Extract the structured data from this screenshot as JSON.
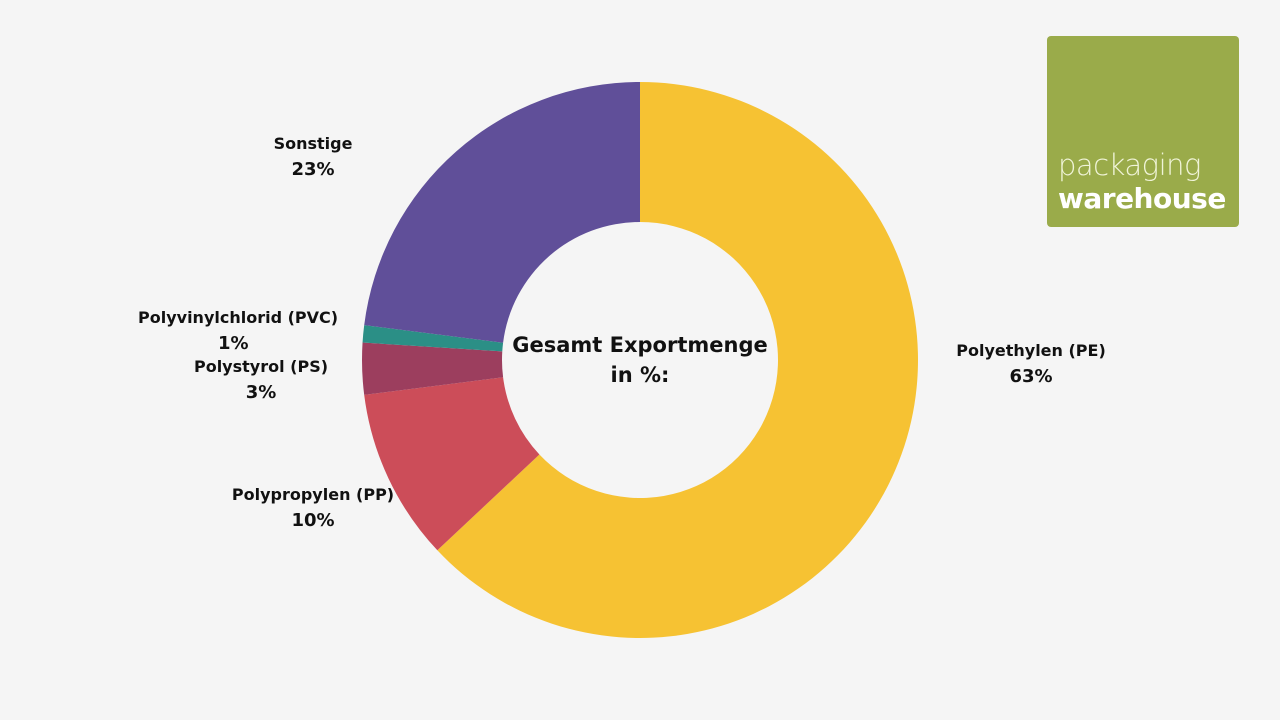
{
  "chart_data": {
    "type": "pie",
    "variant": "donut",
    "title": "Gesamt Exportmenge in %:",
    "categories": [
      "Polyethylen (PE)",
      "Polypropylen (PP)",
      "Polystyrol (PS)",
      "Polyvinylchlorid (PVC)",
      "Sonstige"
    ],
    "values": [
      63,
      10,
      3,
      1,
      23
    ],
    "colors": [
      "#f6c233",
      "#cc4d59",
      "#9c3e5e",
      "#2b8f86",
      "#604f99"
    ],
    "start_angle_deg": 0,
    "direction": "clockwise",
    "labels": [
      {
        "name": "Polyethylen (PE)",
        "value": "63%"
      },
      {
        "name": "Polypropylen (PP)",
        "value": "10%"
      },
      {
        "name": "Polystyrol (PS)",
        "value": "3%"
      },
      {
        "name": "Polyvinylchlorid (PVC)",
        "value": "1%"
      },
      {
        "name": "Sonstige",
        "value": "23%"
      }
    ]
  },
  "center": {
    "line1": "Gesamt Exportmenge",
    "line2": "in %:"
  },
  "logo": {
    "line1": "packaging",
    "line2": "warehouse",
    "color": "#9aab4a"
  }
}
